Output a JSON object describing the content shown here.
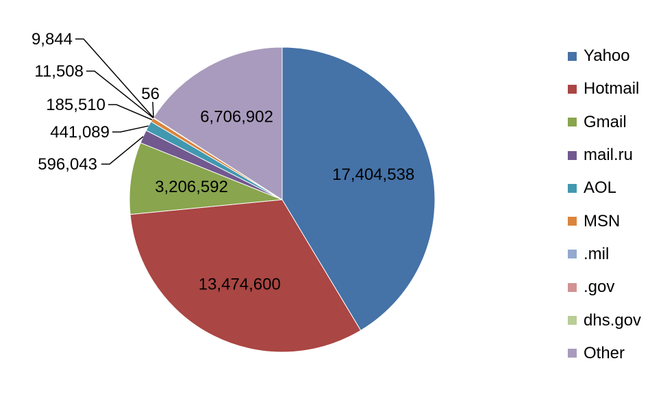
{
  "chart_data": {
    "type": "pie",
    "title": "",
    "series": [
      {
        "categories": [
          "Yahoo",
          "Hotmail",
          "Gmail",
          "mail.ru",
          "AOL",
          "MSN",
          ".mil",
          ".gov",
          "dhs.gov",
          "Other"
        ],
        "values": [
          17404538,
          13474600,
          3206592,
          596043,
          441089,
          185510,
          11508,
          9844,
          56,
          6706902
        ],
        "labels": [
          "17,404,538",
          "13,474,600",
          "3,206,592",
          "596,043",
          "441,089",
          "185,510",
          "11,508",
          "9,844",
          "56",
          "6,706,902"
        ]
      }
    ],
    "colors": [
      "#4572A7",
      "#AA4643",
      "#89A54E",
      "#71588F",
      "#4198AF",
      "#DB843D",
      "#93A9CF",
      "#D19392",
      "#B9CD96",
      "#A99BBD"
    ],
    "legend_position": "right",
    "start_angle": "12 o'clock, clockwise"
  }
}
